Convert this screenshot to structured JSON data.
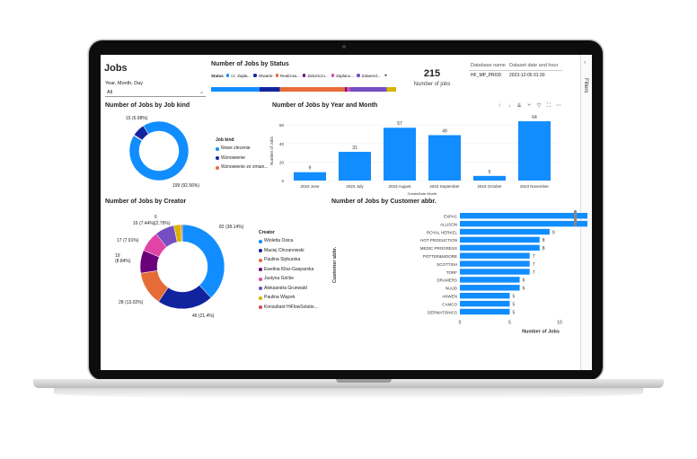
{
  "page": {
    "title": "Jobs"
  },
  "slicer": {
    "label": "Year, Month, Day",
    "value": "All"
  },
  "status": {
    "title": "Number of Jobs by Status",
    "legend_title": "Status",
    "legend": [
      {
        "label": "cz. Zapła...",
        "color": "#118DFF"
      },
      {
        "label": "Otwarte",
        "color": "#12239E"
      },
      {
        "label": "Realizow...",
        "color": "#E66C37"
      },
      {
        "label": "Zakończo...",
        "color": "#6B007B"
      },
      {
        "label": "Zaplano...",
        "color": "#E044A7"
      },
      {
        "label": "Zatwierd...",
        "color": "#744EC2"
      }
    ],
    "more_icon": "chevron-right-icon"
  },
  "kpi": {
    "value": "215",
    "label": "Number of jobs"
  },
  "db": {
    "col1_header": "Database name",
    "col2_header": "Dataset date and hour",
    "col1_value": "HF_MP_PROD",
    "col2_value": "2023-12-05 01:30"
  },
  "job_kind": {
    "title": "Number of Jobs by Job kind",
    "legend_title": "Job kind",
    "legend": [
      {
        "label": "Nowe zlecenie",
        "color": "#118DFF"
      },
      {
        "label": "Wznowienie",
        "color": "#12239E"
      },
      {
        "label": "Wznowienie ze zmian...",
        "color": "#E66C37"
      }
    ],
    "labels": [
      "15 (6.98%)",
      "199 (92.56%)"
    ]
  },
  "year_month": {
    "title": "Number of Jobs by Year and Month",
    "ylabel": "Number of Jobs",
    "xlabel": "CreateDate Month",
    "toolbar_icons": [
      "arrow-up-icon",
      "arrow-down-icon",
      "double-arrow-down-icon",
      "fork-icon",
      "filter-icon",
      "focus-icon",
      "more-icon"
    ]
  },
  "creator": {
    "title": "Number of Jobs by Creator",
    "legend_title": "Creator",
    "legend": [
      {
        "label": "Wioletta  Osica",
        "color": "#118DFF"
      },
      {
        "label": "Maciej Chrzanowski",
        "color": "#12239E"
      },
      {
        "label": "Paulina Styburska",
        "color": "#E66C37"
      },
      {
        "label": "Ewelina   Klisz-Gasparska",
        "color": "#6B007B"
      },
      {
        "label": "Justyna Góćke",
        "color": "#E044A7"
      },
      {
        "label": "Aleksandra Grunwald",
        "color": "#744EC2"
      },
      {
        "label": "Paulina Wiącek",
        "color": "#D9B300"
      },
      {
        "label": "Konsultant HiFlowSolutio...",
        "color": "#D64550"
      }
    ],
    "labels": [
      "82 (38.14%)",
      "46 (21.4%)",
      "28 (13.02%)",
      "19 (8.84%)",
      "17 (7.91%)",
      "16 (7.44%)",
      "6 (2.79%)"
    ]
  },
  "customer": {
    "title": "Number of Jobs by Customer abbr.",
    "ylabel": "Customer abbr.",
    "xlabel": "Number of Jobs"
  },
  "filters": {
    "label": "Filters"
  },
  "chart_data": [
    {
      "type": "bar",
      "title": "Number of Jobs by Year and Month",
      "categories": [
        "2023 June",
        "2023 July",
        "2023 August",
        "2023 September",
        "2023 October",
        "2023 November"
      ],
      "values": [
        9,
        31,
        57,
        49,
        5,
        64
      ],
      "xlabel": "CreateDate Month",
      "ylabel": "Number of Jobs",
      "ylim": [
        0,
        64
      ],
      "yticks": [
        0,
        20,
        40,
        60
      ],
      "color": "#118DFF"
    },
    {
      "type": "bar",
      "orientation": "horizontal",
      "title": "Number of Jobs by Customer abbr.",
      "categories": [
        "EXPAC",
        "ALLISON",
        "ROYAL HERKEL",
        "HOT PRODUCTION",
        "MEDIC PROGRESS",
        "POTTER&amp;MOORE",
        "SCOTTISH",
        "TORF",
        "DRAMERS",
        "NUUD",
        "ANWEN",
        "CAMCO",
        "DERMATONICS"
      ],
      "values": [
        16,
        14,
        9,
        8,
        8,
        7,
        7,
        7,
        6,
        6,
        5,
        5,
        5
      ],
      "xlabel": "Number of Jobs",
      "ylabel": "Customer abbr.",
      "xticks": [
        0,
        5,
        10,
        15
      ],
      "color": "#118DFF"
    },
    {
      "type": "pie",
      "title": "Number of Jobs by Job kind",
      "categories": [
        "Nowe zlecenie",
        "Wznowienie",
        "Wznowienie ze zmian..."
      ],
      "values": [
        199,
        15,
        1
      ]
    },
    {
      "type": "pie",
      "title": "Number of Jobs by Creator",
      "categories": [
        "Wioletta  Osica",
        "Maciej Chrzanowski",
        "Paulina Styburska",
        "Ewelina   Klisz-Gasparska",
        "Justyna Góćke",
        "Aleksandra Grunwald",
        "Paulina Wiącek",
        "Konsultant HiFlowSolutio..."
      ],
      "values": [
        82,
        46,
        28,
        19,
        17,
        16,
        6,
        1
      ]
    },
    {
      "type": "bar",
      "orientation": "stacked-horizontal",
      "title": "Number of Jobs by Status",
      "categories": [
        "cz. Zapła...",
        "Otwarte",
        "Realizow...",
        "Zakończo...",
        "Zaplano...",
        "Zatwierd...",
        "other"
      ],
      "values": [
        52,
        22,
        70,
        2,
        3,
        40,
        10
      ]
    }
  ]
}
